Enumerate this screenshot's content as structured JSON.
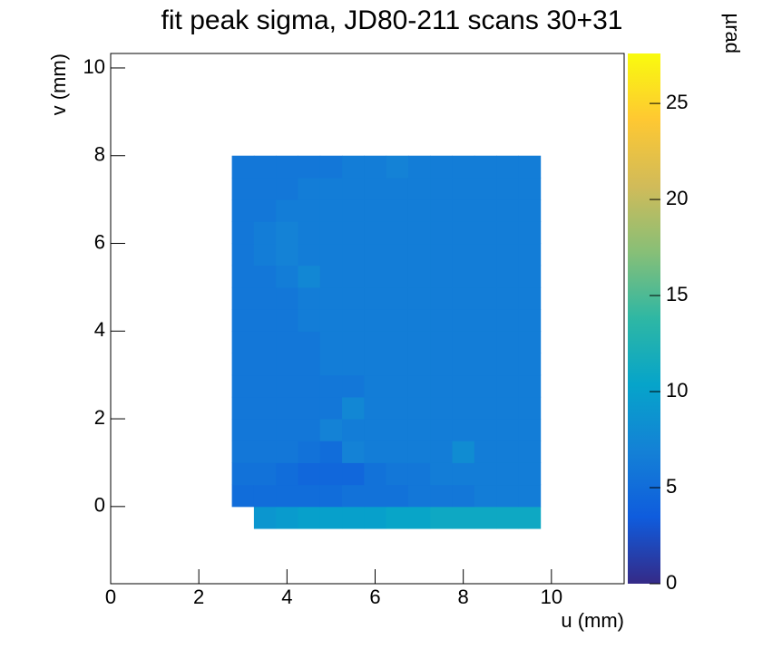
{
  "chart_data": {
    "type": "heatmap",
    "title": "fit peak sigma, JD80-211 scans 30+31",
    "x_label": "u (mm)",
    "y_label": "v (mm)",
    "colorbar_label": "µrad",
    "xlim": [
      0,
      11.65
    ],
    "ylim": [
      -1.76,
      10.33
    ],
    "zlim": [
      0,
      27.6
    ],
    "xticks": [
      0,
      2,
      4,
      6,
      8,
      10
    ],
    "yticks": [
      0,
      2,
      4,
      6,
      8,
      10
    ],
    "zticks": [
      0,
      5,
      10,
      15,
      20,
      25
    ],
    "colorscale": [
      "#352a87",
      "#0f5cdd",
      "#1481d6",
      "#06a4ca",
      "#2eb7a4",
      "#87bf77",
      "#d1bb59",
      "#fec832",
      "#f9fb0e"
    ],
    "x_bins": [
      2.75,
      3.25,
      3.75,
      4.25,
      4.75,
      5.25,
      5.75,
      6.25,
      6.75,
      7.25,
      7.75,
      8.25,
      8.75,
      9.25,
      9.75
    ],
    "y_bins": [
      -0.5,
      0,
      0.5,
      1,
      1.5,
      2,
      2.5,
      3,
      3.5,
      4,
      4.5,
      5,
      5.5,
      6,
      6.5,
      7,
      7.5,
      8
    ],
    "values": [
      [
        null,
        9,
        9.5,
        10,
        10,
        10,
        10,
        10.5,
        10.5,
        11,
        11,
        11,
        11,
        11
      ],
      [
        5,
        5,
        5,
        5,
        5,
        5.5,
        5.5,
        5.5,
        6,
        6,
        6,
        6.5,
        6.5,
        6.5
      ],
      [
        5.5,
        5.5,
        5,
        4.5,
        4.5,
        4.5,
        5.5,
        6,
        6,
        6.5,
        6.5,
        6.5,
        6.5,
        6.5
      ],
      [
        6,
        6,
        6,
        5.5,
        5,
        7,
        6.5,
        6.5,
        6.5,
        6.5,
        8,
        6.5,
        6.5,
        6.5
      ],
      [
        6,
        6,
        6,
        6,
        7,
        6.5,
        6.5,
        6.5,
        6.5,
        6.5,
        6.5,
        6.5,
        6.5,
        6.5
      ],
      [
        6,
        6,
        6,
        6,
        6,
        7.5,
        6.5,
        6.5,
        6.5,
        6.5,
        6.5,
        6.5,
        6.5,
        6.5
      ],
      [
        6,
        6,
        6,
        6,
        6,
        6,
        6.5,
        6.5,
        6.5,
        6.5,
        6.5,
        6.5,
        6.5,
        6.5
      ],
      [
        6,
        6,
        6,
        6,
        6.5,
        6.5,
        6.5,
        6.5,
        6.5,
        6.5,
        6.5,
        6.5,
        6.5,
        6.5
      ],
      [
        6,
        6,
        6,
        6,
        6.5,
        6.5,
        6.5,
        6.5,
        6.5,
        6.5,
        6.5,
        6.5,
        6.5,
        6.5
      ],
      [
        6,
        6,
        6,
        6.5,
        6.5,
        6.5,
        6.5,
        6.5,
        6.5,
        6.5,
        6.5,
        6.5,
        6.5,
        6.5
      ],
      [
        6,
        6,
        6,
        6.5,
        6.5,
        6.5,
        6.5,
        6.5,
        6.5,
        6.5,
        6.5,
        6.5,
        6.5,
        6.5
      ],
      [
        6,
        6,
        6.5,
        7.5,
        6.5,
        6.5,
        6.5,
        6.5,
        6.5,
        6.5,
        6.5,
        6.5,
        6.5,
        6.5
      ],
      [
        6,
        6.5,
        7,
        6.5,
        6.5,
        6.5,
        6.5,
        6.5,
        6.5,
        6.5,
        6.5,
        6.5,
        6.5,
        6.5
      ],
      [
        6,
        6.5,
        7,
        6.5,
        6.5,
        6.5,
        6.5,
        6.5,
        6.5,
        6.5,
        6.5,
        6.5,
        6.5,
        6.5
      ],
      [
        6,
        6,
        6.5,
        6.5,
        6.5,
        6.5,
        6.5,
        6.5,
        6.5,
        6.5,
        6.5,
        6.5,
        6.5,
        6.5
      ],
      [
        6,
        6,
        6,
        6.5,
        6.5,
        6.5,
        6.5,
        6.5,
        6.5,
        6.5,
        6.5,
        6.5,
        6.5,
        6.5
      ],
      [
        6,
        6,
        6,
        6,
        6,
        6.5,
        6.5,
        7,
        6.5,
        6.5,
        6.5,
        6.5,
        6.5,
        6.5
      ]
    ]
  }
}
